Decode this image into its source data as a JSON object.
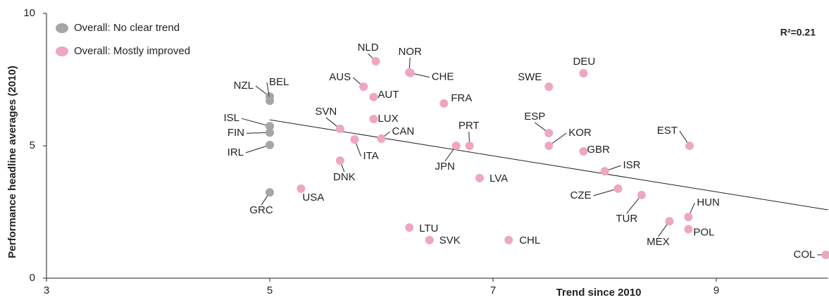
{
  "chart_data": {
    "type": "scatter",
    "xlabel": "Trend since 2010",
    "ylabel": "Performance headline averages (2010)",
    "annotation": "R²=0.21",
    "xlim": [
      3,
      10
    ],
    "xticks": [
      3,
      5,
      7,
      9
    ],
    "ylim": [
      0,
      10
    ],
    "yticks": [
      0,
      5,
      10
    ],
    "grid": false,
    "legend": "upper left",
    "series": [
      {
        "name": "Overall: No clear trend",
        "color": "#a8a5a2",
        "labels": [
          "NZL",
          "BEL",
          "ISL",
          "FIN",
          "IRL",
          "GRC"
        ],
        "x": [
          5,
          5,
          5,
          5,
          5,
          5
        ],
        "values": [
          6.86,
          6.7,
          5.74,
          5.5,
          5.03,
          3.24
        ]
      },
      {
        "name": "Overall: Mostly improved",
        "color": "#eea6c5",
        "labels": [
          "NLD",
          "NOR",
          "CHE",
          "AUS",
          "AUT",
          "FRA",
          "LUX",
          "SVN",
          "CAN",
          "ITA",
          "DNK",
          "USA",
          "PRT",
          "JPN",
          "LVA",
          "LTU",
          "SVK",
          "CHL",
          "DEU",
          "SWE",
          "ESP",
          "KOR",
          "GBR",
          "ISR",
          "EST",
          "CZE",
          "TUR",
          "HUN",
          "MEX",
          "POL",
          "COL"
        ],
        "x": [
          5.95,
          6.25,
          6.26,
          5.84,
          5.93,
          6.56,
          5.93,
          5.63,
          6.0,
          5.76,
          5.63,
          5.28,
          6.79,
          6.67,
          6.88,
          6.25,
          6.43,
          7.14,
          7.81,
          7.5,
          7.5,
          7.5,
          7.81,
          8.0,
          8.76,
          8.12,
          8.33,
          8.75,
          8.58,
          8.75,
          9.98
        ],
        "values": [
          8.19,
          7.77,
          7.75,
          7.23,
          6.84,
          6.6,
          6.01,
          5.64,
          5.27,
          5.24,
          4.44,
          3.38,
          5.0,
          5.0,
          3.78,
          1.91,
          1.44,
          1.44,
          7.74,
          7.23,
          5.48,
          5.0,
          4.79,
          4.04,
          5.0,
          3.38,
          3.14,
          2.31,
          2.15,
          1.85,
          0.88
        ]
      }
    ],
    "trendline": {
      "x": [
        5,
        10
      ],
      "values": [
        5.98,
        2.58
      ]
    }
  }
}
